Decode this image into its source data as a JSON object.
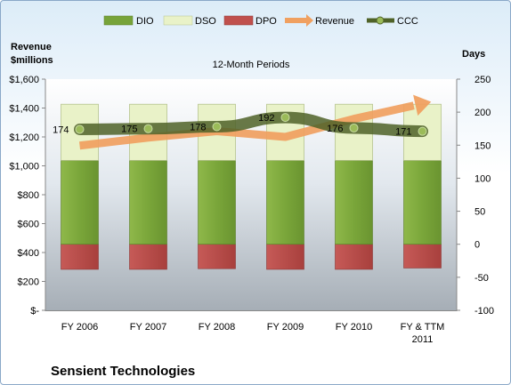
{
  "chart_data": {
    "type": "bar",
    "title": "12-Month Periods",
    "company": "Sensient Technologies",
    "left_axis_title_line1": "Revenue",
    "left_axis_title_line2": "$millions",
    "right_axis_title": "Days",
    "categories": [
      [
        "FY 2006"
      ],
      [
        "FY 2007"
      ],
      [
        "FY 2008"
      ],
      [
        "FY 2009"
      ],
      [
        "FY 2010"
      ],
      [
        "FY & TTM",
        "2011"
      ]
    ],
    "left_axis": {
      "min": 0,
      "max": 1600,
      "step": 200,
      "tick_labels": [
        "$-",
        "$200",
        "$400",
        "$600",
        "$800",
        "$1,000",
        "$1,200",
        "$1,400",
        "$1,600"
      ]
    },
    "right_axis": {
      "min": -100,
      "max": 250,
      "step": 50,
      "tick_labels": [
        "-100",
        "-50",
        "0",
        "50",
        "100",
        "150",
        "200",
        "250"
      ]
    },
    "series": [
      {
        "name": "DIO",
        "axis": "right",
        "color": "#77a339",
        "values": [
          127,
          127,
          127,
          127,
          127,
          127
        ]
      },
      {
        "name": "DSO",
        "axis": "right",
        "color": "#e9f2c8",
        "values": [
          85,
          85,
          85,
          85,
          85,
          85
        ]
      },
      {
        "name": "DPO",
        "axis": "right",
        "color": "#c0504d",
        "values": [
          -38,
          -38,
          -37,
          -38,
          -38,
          -36
        ]
      },
      {
        "name": "Revenue",
        "axis": "left",
        "color": "#f0a060",
        "values": [
          1140,
          1195,
          1240,
          1200,
          1325,
          1430
        ]
      },
      {
        "name": "CCC",
        "axis": "right",
        "color": "#4f6228",
        "values": [
          174,
          175,
          178,
          192,
          176,
          171
        ]
      }
    ],
    "ccc_labels": [
      "174",
      "175",
      "178",
      "192",
      "176",
      "171"
    ],
    "legend_position": "top"
  }
}
